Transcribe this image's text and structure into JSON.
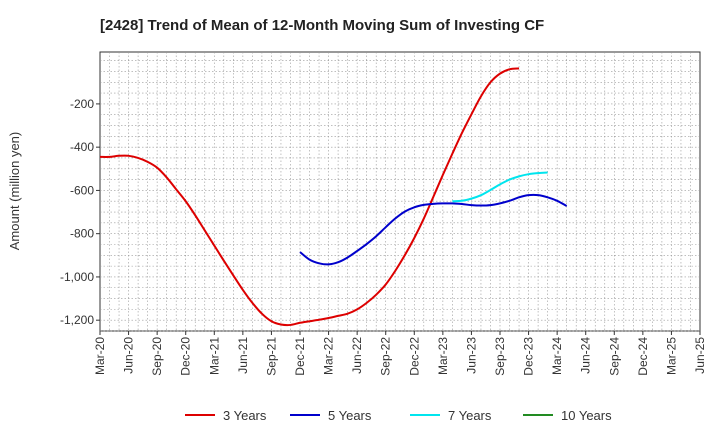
{
  "chart_data": {
    "type": "line",
    "title": "[2428]  Trend of Mean of 12-Month Moving Sum of Investing CF",
    "xlabel": "",
    "ylabel": "Amount (million yen)",
    "ylim": [
      -1250,
      40
    ],
    "yticks": [
      -1200,
      -1000,
      -800,
      -600,
      -400,
      -200
    ],
    "ytick_labels": [
      "-1,200",
      "-1,000",
      "-800",
      "-600",
      "-400",
      "-200"
    ],
    "x_tick_labels": [
      "Mar-20",
      "Jun-20",
      "Sep-20",
      "Dec-20",
      "Mar-21",
      "Jun-21",
      "Sep-21",
      "Dec-21",
      "Mar-22",
      "Jun-22",
      "Sep-22",
      "Dec-22",
      "Mar-23",
      "Jun-23",
      "Sep-23",
      "Dec-23",
      "Mar-24",
      "Jun-24",
      "Sep-24",
      "Dec-24",
      "Mar-25",
      "Jun-25"
    ],
    "grid": true,
    "legend_position": "bottom",
    "series": [
      {
        "name": "3 Years",
        "color": "#dd0000",
        "start_index": 0,
        "values": [
          -445,
          -445,
          -440,
          -440,
          -450,
          -468,
          -495,
          -540,
          -595,
          -650,
          -715,
          -785,
          -855,
          -925,
          -993,
          -1060,
          -1120,
          -1170,
          -1205,
          -1220,
          -1222,
          -1212,
          -1205,
          -1198,
          -1190,
          -1180,
          -1170,
          -1150,
          -1120,
          -1082,
          -1035,
          -972,
          -900,
          -820,
          -730,
          -630,
          -528,
          -430,
          -335,
          -248,
          -165,
          -100,
          -60,
          -40,
          -36
        ]
      },
      {
        "name": "5 Years",
        "color": "#0000cc",
        "start_index": 21,
        "values": [
          -885,
          -920,
          -937,
          -942,
          -932,
          -910,
          -880,
          -848,
          -812,
          -770,
          -730,
          -698,
          -678,
          -667,
          -662,
          -660,
          -660,
          -663,
          -668,
          -670,
          -668,
          -660,
          -648,
          -632,
          -622,
          -622,
          -632,
          -648,
          -672
        ]
      },
      {
        "name": "7 Years",
        "color": "#00e5ee",
        "start_index": 37,
        "values": [
          -650,
          -648,
          -638,
          -622,
          -598,
          -572,
          -550,
          -535,
          -525,
          -520,
          -517
        ]
      },
      {
        "name": "10 Years",
        "color": "#228b22",
        "start_index": 0,
        "values": []
      }
    ]
  }
}
